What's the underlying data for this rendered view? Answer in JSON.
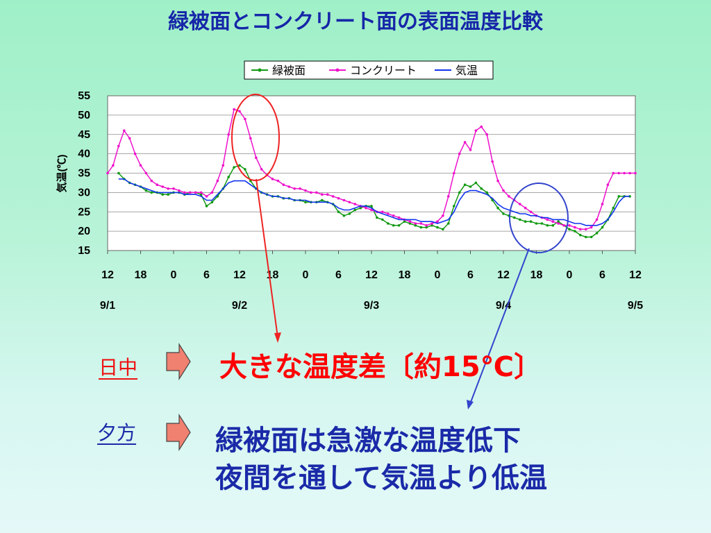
{
  "title": "緑被面とコンクリート面の表面温度比較",
  "chart_data": {
    "type": "line",
    "ylabel": "気温(℃)",
    "ylim": [
      15,
      55
    ],
    "yticks": [
      15,
      20,
      25,
      30,
      35,
      40,
      45,
      50,
      55
    ],
    "xlim": [
      0,
      96
    ],
    "xtick_labels": [
      "12",
      "18",
      "0",
      "6",
      "12",
      "18",
      "0",
      "6",
      "12",
      "18",
      "0",
      "6",
      "12",
      "18",
      "0",
      "6",
      "12"
    ],
    "date_labels": [
      "9/1",
      "9/2",
      "9/3",
      "9/4",
      "9/5"
    ],
    "grid": true,
    "legend_position": "top-center",
    "series": [
      {
        "name": "緑被面",
        "color": "#119911",
        "x": [
          2,
          3,
          4,
          5,
          6,
          7,
          8,
          9,
          10,
          11,
          12,
          13,
          14,
          15,
          16,
          17,
          18,
          19,
          20,
          21,
          22,
          23,
          24,
          25,
          26,
          27,
          28,
          29,
          30,
          31,
          32,
          33,
          34,
          35,
          36,
          37,
          38,
          39,
          40,
          41,
          42,
          43,
          44,
          45,
          46,
          47,
          48,
          49,
          50,
          51,
          52,
          53,
          54,
          55,
          56,
          57,
          58,
          59,
          60,
          61,
          62,
          63,
          64,
          65,
          66,
          67,
          68,
          69,
          70,
          71,
          72,
          73,
          74,
          75,
          76,
          77,
          78,
          79,
          80,
          81,
          82,
          83,
          84,
          85,
          86,
          87,
          88,
          89,
          90,
          91,
          92,
          93,
          94,
          95
        ],
        "values": [
          35,
          33.5,
          32.5,
          32,
          31.5,
          30.5,
          30,
          30,
          29.5,
          29.5,
          30,
          30,
          29.5,
          30,
          30,
          29.5,
          26.5,
          27.5,
          29,
          31,
          34,
          36.5,
          37,
          36,
          33,
          31,
          30,
          29.5,
          29,
          29,
          28.5,
          28.5,
          28,
          28,
          27.5,
          27.5,
          27.5,
          28,
          27.5,
          27,
          25,
          24,
          24.5,
          25.5,
          26,
          26.5,
          26.5,
          23.5,
          23,
          22,
          21.5,
          21.5,
          22.5,
          22,
          21.5,
          21,
          21,
          21.5,
          21,
          20.5,
          22,
          26.5,
          30,
          32,
          31.5,
          32.5,
          31,
          30,
          28,
          26,
          24.5,
          24,
          23.5,
          23,
          22.5,
          22.5,
          22,
          22,
          21.5,
          21.5,
          22.5,
          21.5,
          20.5,
          20,
          19,
          18.5,
          18.5,
          19.5,
          21,
          23,
          26,
          29,
          29,
          29
        ]
      },
      {
        "name": "コンクリート",
        "color": "#ee11cc",
        "x": [
          0,
          1,
          2,
          3,
          4,
          5,
          6,
          7,
          8,
          9,
          10,
          11,
          12,
          13,
          14,
          15,
          16,
          17,
          18,
          19,
          20,
          21,
          22,
          23,
          24,
          25,
          26,
          27,
          28,
          29,
          30,
          31,
          32,
          33,
          34,
          35,
          36,
          37,
          38,
          39,
          40,
          41,
          42,
          43,
          44,
          45,
          46,
          47,
          48,
          49,
          50,
          51,
          52,
          53,
          54,
          55,
          56,
          57,
          58,
          59,
          60,
          61,
          62,
          63,
          64,
          65,
          66,
          67,
          68,
          69,
          70,
          71,
          72,
          73,
          74,
          75,
          76,
          77,
          78,
          79,
          80,
          81,
          82,
          83,
          84,
          85,
          86,
          87,
          88,
          89,
          90,
          91,
          92,
          93,
          94,
          95,
          96
        ],
        "values": [
          35,
          37,
          42,
          46,
          44,
          40,
          37,
          35,
          33,
          32,
          31.5,
          31,
          31,
          30.5,
          30,
          30,
          30,
          30,
          29,
          30,
          33,
          37,
          45,
          51.5,
          51,
          49,
          44,
          39,
          36,
          34.5,
          33.5,
          33,
          32,
          31.5,
          31,
          31,
          30.5,
          30,
          30,
          29.5,
          29.5,
          29,
          28.5,
          28,
          27.5,
          27,
          26.5,
          26,
          25.5,
          25,
          25,
          24.5,
          24,
          23.5,
          23,
          22.5,
          22,
          22,
          21.5,
          22,
          22.5,
          24,
          29,
          35,
          40,
          43,
          41,
          46,
          47,
          45,
          38,
          33,
          30.5,
          29,
          28,
          27,
          26,
          25,
          24,
          23.5,
          23,
          22.5,
          22,
          21.5,
          21.5,
          21,
          20.5,
          20.5,
          21,
          23,
          27,
          32,
          35,
          35,
          35,
          35,
          35
        ]
      },
      {
        "name": "気温",
        "color": "#1133ee",
        "x": [
          2,
          3,
          4,
          5,
          6,
          7,
          8,
          9,
          10,
          11,
          12,
          13,
          14,
          15,
          16,
          17,
          18,
          19,
          20,
          21,
          22,
          23,
          24,
          25,
          26,
          27,
          28,
          29,
          30,
          31,
          32,
          33,
          34,
          35,
          36,
          37,
          38,
          39,
          40,
          41,
          42,
          43,
          44,
          45,
          46,
          47,
          48,
          49,
          50,
          51,
          52,
          53,
          54,
          55,
          56,
          57,
          58,
          59,
          60,
          61,
          62,
          63,
          64,
          65,
          66,
          67,
          68,
          69,
          70,
          71,
          72,
          73,
          74,
          75,
          76,
          77,
          78,
          79,
          80,
          81,
          82,
          83,
          84,
          85,
          86,
          87,
          88,
          89,
          90,
          91,
          92,
          93,
          94,
          95
        ],
        "values": [
          33.5,
          33.5,
          32.5,
          32,
          31.5,
          31,
          30.5,
          30,
          30,
          30,
          30,
          30,
          29.5,
          29.5,
          29.5,
          29,
          28,
          28,
          29.5,
          31,
          32.5,
          33,
          33,
          33,
          32,
          31,
          30,
          29.5,
          29,
          29,
          28.5,
          28.5,
          28,
          28,
          28,
          27.5,
          27.5,
          27.5,
          27.5,
          27,
          26,
          25.5,
          25.5,
          26,
          26.5,
          26.5,
          26,
          25,
          24.5,
          24,
          23.5,
          23,
          23,
          23,
          23,
          22.5,
          22.5,
          22.5,
          22,
          22.5,
          23,
          25,
          28,
          30,
          30.5,
          30.5,
          30,
          29.5,
          28.5,
          27,
          26,
          25.5,
          25,
          24.5,
          24.5,
          24,
          24,
          23.5,
          23.5,
          23,
          23,
          23,
          22.5,
          22,
          22,
          21.5,
          21.5,
          21.5,
          22,
          23,
          25,
          27.5,
          29,
          29
        ]
      }
    ]
  },
  "rows": {
    "daytime": {
      "label": "日中",
      "text": "大きな温度差〔約15℃〕"
    },
    "evening": {
      "label": "夕方",
      "text1": "緑被面は急激な温度低下",
      "text2": "夜間を通して気温より低温"
    }
  }
}
